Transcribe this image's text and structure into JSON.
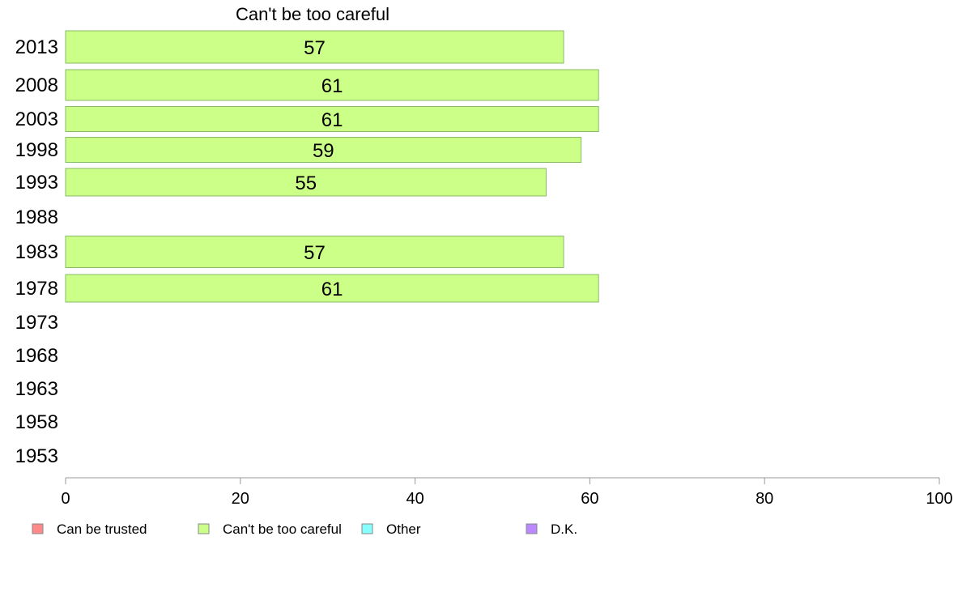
{
  "chart_data": {
    "type": "bar",
    "orientation": "horizontal",
    "title": "Can't be too careful",
    "categories": [
      "2013",
      "2008",
      "2003",
      "1998",
      "1993",
      "1988",
      "1983",
      "1978",
      "1973",
      "1968",
      "1963",
      "1958",
      "1953"
    ],
    "series": [
      {
        "name": "Can't be too careful",
        "values": [
          57,
          61,
          61,
          59,
          55,
          null,
          57,
          61,
          null,
          null,
          null,
          null,
          null
        ],
        "display_labels": [
          "57",
          "61",
          "61",
          "59",
          "55",
          "",
          "57",
          "61",
          "",
          "",
          "",
          "",
          ""
        ]
      }
    ],
    "xlim": [
      0,
      100
    ],
    "xticks": [
      "0",
      "20",
      "40",
      "60",
      "80",
      "100"
    ],
    "grid": false,
    "legend_position": "bottom",
    "legend": [
      {
        "label": "Can be trusted",
        "color": "#ff8888"
      },
      {
        "label": "Can't be too careful",
        "color": "#ccff88"
      },
      {
        "label": "Other",
        "color": "#88ffff"
      },
      {
        "label": "D.K.",
        "color": "#bb88ff"
      }
    ],
    "colors": {
      "bar_fill": "#ccff88",
      "bar_stroke": "#88bb66",
      "axis": "#999999"
    }
  }
}
